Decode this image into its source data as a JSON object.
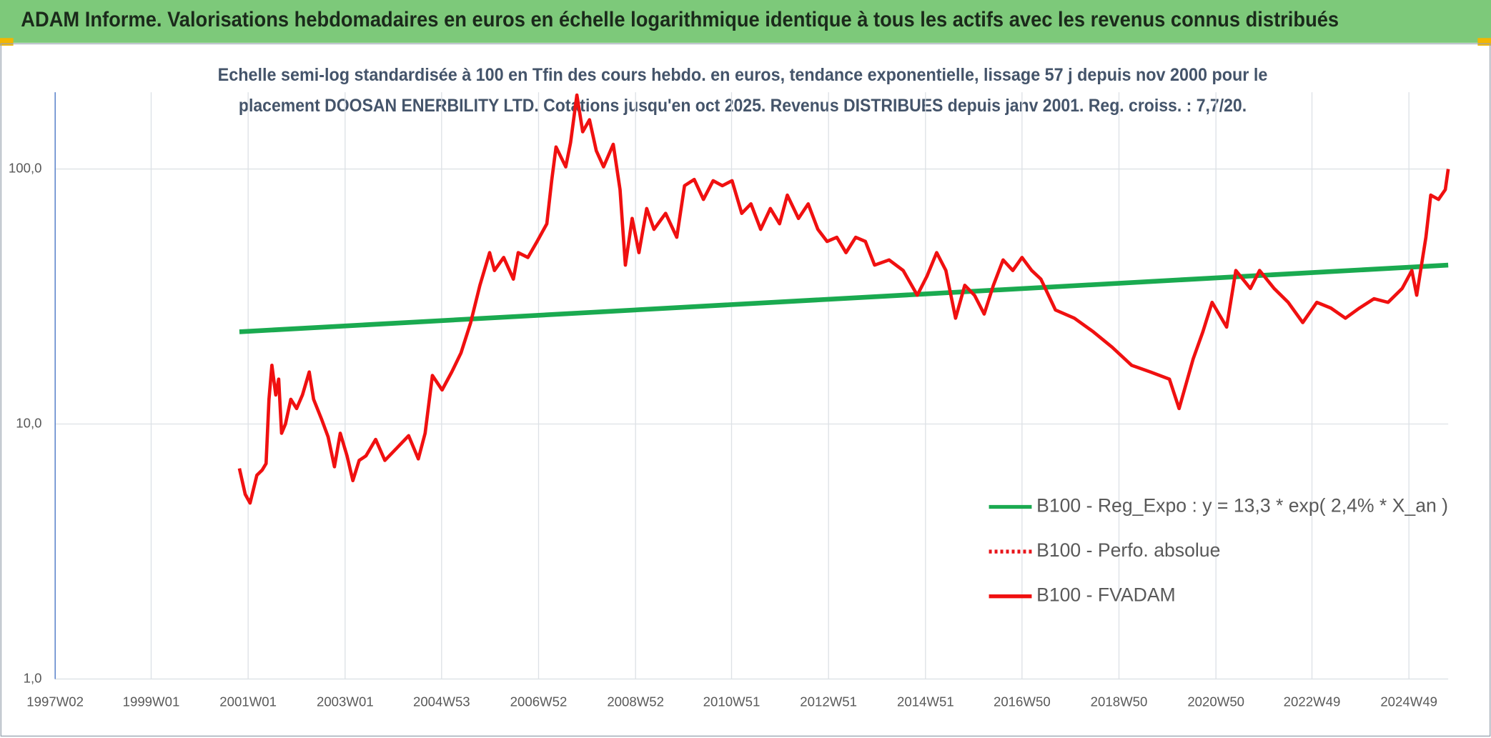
{
  "chart_data": {
    "type": "line",
    "title": "ADAM Informe. Valorisations hebdomadaires en euros en échelle logarithmique identique à tous les actifs avec les revenus connus distribués",
    "subtitle": [
      "Echelle semi-log standardisée à 100 en Tfin des cours hebdo. en euros, tendance exponentielle, lissage 57 j depuis nov 2000 pour le",
      "placement DOOSAN ENERBILITY LTD. Cotations jusqu'en oct 2025. Revenus DISTRIBUES depuis janv 2001. Reg. croiss. : 7,7/20."
    ],
    "log_y": true,
    "grid": true,
    "xlim": [
      1997.02,
      2025.75
    ],
    "ylim": [
      1,
      200
    ],
    "yticks": [
      {
        "value": 1,
        "label": "1,0"
      },
      {
        "value": 10,
        "label": "10,0"
      },
      {
        "value": 100,
        "label": "100,0"
      }
    ],
    "xticks": [
      {
        "value": 1997.02,
        "label": "1997W02"
      },
      {
        "value": 1999.0,
        "label": "1999W01"
      },
      {
        "value": 2001.0,
        "label": "2001W01"
      },
      {
        "value": 2003.0,
        "label": "2003W01"
      },
      {
        "value": 2004.99,
        "label": "2004W53"
      },
      {
        "value": 2006.99,
        "label": "2006W52"
      },
      {
        "value": 2008.99,
        "label": "2008W52"
      },
      {
        "value": 2010.97,
        "label": "2010W51"
      },
      {
        "value": 2012.97,
        "label": "2012W51"
      },
      {
        "value": 2014.97,
        "label": "2014W51"
      },
      {
        "value": 2016.96,
        "label": "2016W50"
      },
      {
        "value": 2018.96,
        "label": "2018W50"
      },
      {
        "value": 2020.96,
        "label": "2020W50"
      },
      {
        "value": 2022.94,
        "label": "2022W49"
      },
      {
        "value": 2024.94,
        "label": "2024W49"
      }
    ],
    "series": [
      {
        "name": "B100 - Reg_Expo : y = 13,3 * exp( 2,4% *  X_an )",
        "color": "#1aaa50",
        "style": "solid",
        "x": [
          2000.82,
          2025.75
        ],
        "values": [
          23,
          42
        ]
      },
      {
        "name": "B100 - Perfo. absolue",
        "color": "#e8141a",
        "style": "dotted",
        "x": [],
        "values": []
      },
      {
        "name": "B100 - FVADAM",
        "color": "#f01010",
        "style": "solid",
        "x": [
          2000.82,
          2000.94,
          2001.04,
          2001.18,
          2001.29,
          2001.37,
          2001.43,
          2001.49,
          2001.57,
          2001.63,
          2001.69,
          2001.77,
          2001.88,
          2002.0,
          2002.12,
          2002.26,
          2002.35,
          2002.51,
          2002.65,
          2002.78,
          2002.9,
          2003.04,
          2003.16,
          2003.29,
          2003.43,
          2003.63,
          2003.82,
          2004.08,
          2004.31,
          2004.51,
          2004.65,
          2004.8,
          2005.0,
          2005.2,
          2005.39,
          2005.59,
          2005.78,
          2005.98,
          2006.08,
          2006.27,
          2006.47,
          2006.57,
          2006.77,
          2006.96,
          2007.16,
          2007.26,
          2007.35,
          2007.55,
          2007.65,
          2007.78,
          2007.9,
          2008.04,
          2008.18,
          2008.33,
          2008.53,
          2008.67,
          2008.78,
          2008.92,
          2009.06,
          2009.22,
          2009.37,
          2009.61,
          2009.84,
          2010.0,
          2010.2,
          2010.39,
          2010.59,
          2010.78,
          2010.98,
          2011.18,
          2011.37,
          2011.57,
          2011.77,
          2011.96,
          2012.12,
          2012.35,
          2012.55,
          2012.75,
          2012.94,
          2013.14,
          2013.33,
          2013.53,
          2013.73,
          2013.92,
          2014.22,
          2014.51,
          2014.8,
          2015.0,
          2015.2,
          2015.39,
          2015.59,
          2015.78,
          2015.98,
          2016.18,
          2016.37,
          2016.57,
          2016.77,
          2016.96,
          2017.16,
          2017.35,
          2017.65,
          2018.04,
          2018.43,
          2018.82,
          2019.22,
          2019.61,
          2020.0,
          2020.2,
          2020.49,
          2020.69,
          2020.88,
          2021.18,
          2021.37,
          2021.67,
          2021.86,
          2022.16,
          2022.45,
          2022.75,
          2023.04,
          2023.33,
          2023.63,
          2023.92,
          2024.22,
          2024.51,
          2024.8,
          2025.0,
          2025.1,
          2025.29,
          2025.39,
          2025.55,
          2025.69,
          2025.75
        ],
        "values": [
          6.7,
          5.3,
          4.9,
          6.3,
          6.6,
          7.0,
          12.5,
          17,
          13,
          15,
          9.2,
          10,
          12.5,
          11.5,
          13,
          16,
          12.5,
          10.5,
          8.9,
          6.8,
          9.2,
          7.5,
          6.0,
          7.2,
          7.5,
          8.7,
          7.2,
          8.1,
          9.0,
          7.3,
          9.2,
          15.5,
          13.6,
          16,
          19,
          25,
          35,
          47,
          40,
          45,
          37,
          47,
          45,
          52,
          61,
          90,
          122,
          102,
          127,
          195,
          140,
          156,
          118,
          102,
          125,
          83,
          42,
          64,
          47,
          70,
          58,
          67,
          54,
          86,
          91,
          76,
          90,
          86,
          90,
          67,
          73,
          58,
          70,
          61,
          79,
          64,
          73,
          58,
          52,
          54,
          47,
          54,
          52,
          42,
          44,
          40,
          32,
          38,
          47,
          40,
          26,
          35,
          32,
          27,
          35,
          44,
          40,
          45,
          40,
          37,
          28,
          26,
          23,
          20,
          17,
          16,
          15,
          11.5,
          18,
          23,
          30,
          24,
          40,
          34,
          40,
          34,
          30,
          25,
          30,
          28.5,
          26,
          28.5,
          31,
          30,
          34,
          40,
          32,
          54,
          79,
          76,
          83,
          100
        ]
      }
    ],
    "legend": "lower-right"
  }
}
